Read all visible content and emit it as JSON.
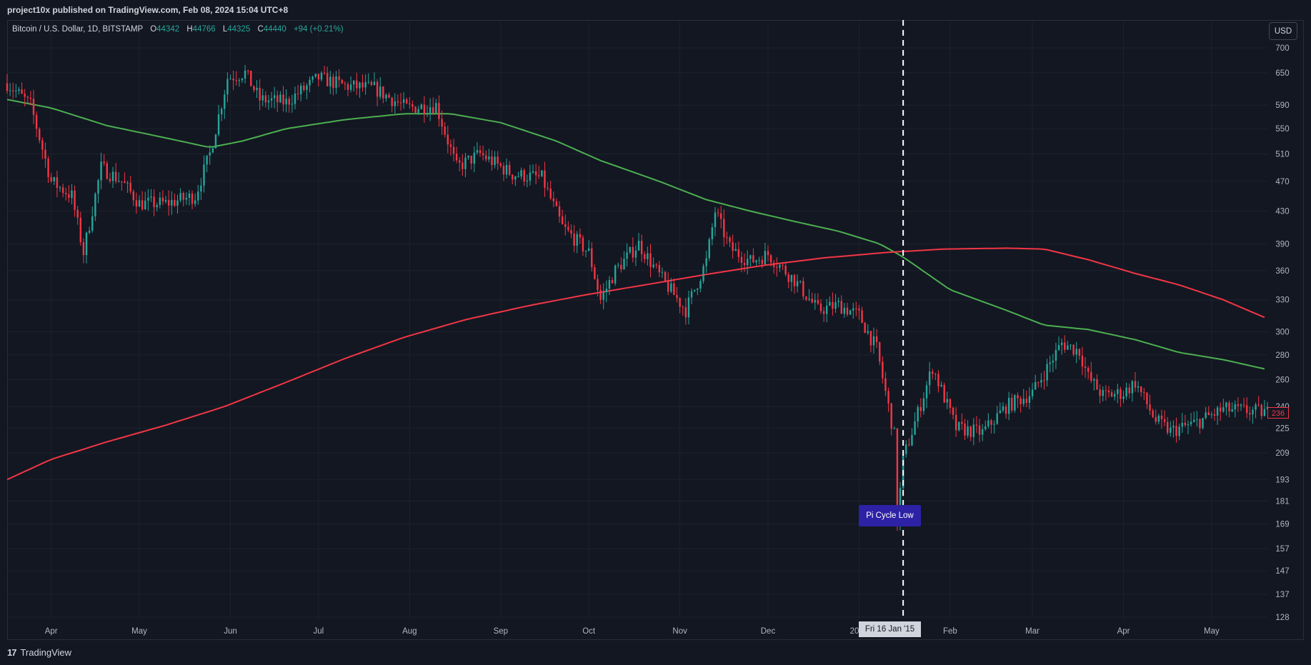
{
  "header": {
    "publish_info": "project10x published on TradingView.com, Feb 08, 2024 15:04 UTC+8"
  },
  "symbol": {
    "name": "Bitcoin / U.S. Dollar, 1D, BITSTAMP",
    "open_label": "O",
    "open_value": "44342",
    "high_label": "H",
    "high_value": "44766",
    "low_label": "L",
    "low_value": "44325",
    "close_label": "C",
    "close_value": "44440",
    "change": "+94 (+0.21%)"
  },
  "currency_button": "USD",
  "annotation": "Pi Cycle Low",
  "crosshair_time_label": "Fri 16 Jan '15",
  "last_price_badge": "236",
  "footer": {
    "brand": "TradingView",
    "logo": "17"
  },
  "colors": {
    "background": "#131722",
    "grid": "#1e222d",
    "up": "#26a69a",
    "down": "#f23645",
    "ma_green": "#4caf50",
    "ma_red": "#f23645",
    "annotation_bg": "#2d22a5"
  },
  "chart_data": {
    "type": "candlestick",
    "scale": "log",
    "ylim": [
      128,
      700
    ],
    "y_ticks": [
      700,
      650,
      590,
      550,
      510,
      470,
      430,
      390,
      360,
      330,
      300,
      280,
      260,
      240,
      225,
      209,
      193,
      181,
      169,
      157,
      147,
      137,
      128
    ],
    "x_ticks": [
      "Apr",
      "May",
      "Jun",
      "Jul",
      "Aug",
      "Sep",
      "Oct",
      "Nov",
      "Dec",
      "2015",
      "Feb",
      "Mar",
      "Apr",
      "May"
    ],
    "x_range": [
      "2014-03-17",
      "2015-05-20"
    ],
    "grid": true,
    "vertical_marker": {
      "date": "2015-01-16",
      "style": "dashed"
    },
    "price_path": [
      [
        "2014-03-17",
        630
      ],
      [
        "2014-03-25",
        590
      ],
      [
        "2014-04-01",
        470
      ],
      [
        "2014-04-08",
        450
      ],
      [
        "2014-04-12",
        380
      ],
      [
        "2014-04-18",
        490
      ],
      [
        "2014-04-25",
        470
      ],
      [
        "2014-05-01",
        440
      ],
      [
        "2014-05-10",
        440
      ],
      [
        "2014-05-20",
        450
      ],
      [
        "2014-05-25",
        510
      ],
      [
        "2014-05-31",
        640
      ],
      [
        "2014-06-06",
        650
      ],
      [
        "2014-06-11",
        600
      ],
      [
        "2014-06-20",
        595
      ],
      [
        "2014-07-01",
        640
      ],
      [
        "2014-07-10",
        625
      ],
      [
        "2014-07-20",
        620
      ],
      [
        "2014-07-31",
        585
      ],
      [
        "2014-08-10",
        590
      ],
      [
        "2014-08-17",
        490
      ],
      [
        "2014-08-25",
        510
      ],
      [
        "2014-09-05",
        480
      ],
      [
        "2014-09-15",
        475
      ],
      [
        "2014-09-22",
        410
      ],
      [
        "2014-10-01",
        380
      ],
      [
        "2014-10-05",
        330
      ],
      [
        "2014-10-10",
        360
      ],
      [
        "2014-10-18",
        390
      ],
      [
        "2014-10-25",
        355
      ],
      [
        "2014-11-03",
        320
      ],
      [
        "2014-11-10",
        370
      ],
      [
        "2014-11-13",
        430
      ],
      [
        "2014-11-18",
        385
      ],
      [
        "2014-11-25",
        370
      ],
      [
        "2014-12-01",
        378
      ],
      [
        "2014-12-10",
        350
      ],
      [
        "2014-12-18",
        320
      ],
      [
        "2014-12-25",
        325
      ],
      [
        "2015-01-01",
        315
      ],
      [
        "2015-01-07",
        285
      ],
      [
        "2015-01-13",
        220
      ],
      [
        "2015-01-14",
        170
      ],
      [
        "2015-01-16",
        205
      ],
      [
        "2015-01-26",
        270
      ],
      [
        "2015-02-03",
        225
      ],
      [
        "2015-02-12",
        222
      ],
      [
        "2015-02-20",
        240
      ],
      [
        "2015-03-01",
        250
      ],
      [
        "2015-03-11",
        290
      ],
      [
        "2015-03-17",
        283
      ],
      [
        "2015-03-20",
        262
      ],
      [
        "2015-03-25",
        248
      ],
      [
        "2015-04-01",
        250
      ],
      [
        "2015-04-05",
        258
      ],
      [
        "2015-04-12",
        230
      ],
      [
        "2015-04-17",
        223
      ],
      [
        "2015-04-25",
        228
      ],
      [
        "2015-05-05",
        238
      ],
      [
        "2015-05-20",
        236
      ]
    ],
    "series": [
      {
        "name": "",
        "color": "#4caf50",
        "points": [
          [
            "2014-03-17",
            600
          ],
          [
            "2014-04-01",
            585
          ],
          [
            "2014-04-20",
            555
          ],
          [
            "2014-05-10",
            535
          ],
          [
            "2014-05-25",
            520
          ],
          [
            "2014-06-05",
            530
          ],
          [
            "2014-06-20",
            550
          ],
          [
            "2014-07-10",
            565
          ],
          [
            "2014-07-30",
            575
          ],
          [
            "2014-08-15",
            575
          ],
          [
            "2014-09-01",
            560
          ],
          [
            "2014-09-20",
            530
          ],
          [
            "2014-10-05",
            500
          ],
          [
            "2014-10-25",
            470
          ],
          [
            "2014-11-10",
            445
          ],
          [
            "2014-11-25",
            430
          ],
          [
            "2014-12-10",
            417
          ],
          [
            "2014-12-25",
            405
          ],
          [
            "2015-01-08",
            390
          ],
          [
            "2015-01-16",
            375
          ],
          [
            "2015-02-01",
            340
          ],
          [
            "2015-02-20",
            320
          ],
          [
            "2015-03-05",
            306
          ],
          [
            "2015-03-20",
            302
          ],
          [
            "2015-04-05",
            293
          ],
          [
            "2015-04-20",
            282
          ],
          [
            "2015-05-05",
            276
          ],
          [
            "2015-05-20",
            268
          ]
        ]
      },
      {
        "name": "",
        "color": "#f23645",
        "points": [
          [
            "2014-03-17",
            193
          ],
          [
            "2014-04-01",
            205
          ],
          [
            "2014-04-20",
            216
          ],
          [
            "2014-05-10",
            227
          ],
          [
            "2014-05-30",
            240
          ],
          [
            "2014-06-20",
            258
          ],
          [
            "2014-07-10",
            277
          ],
          [
            "2014-07-30",
            295
          ],
          [
            "2014-08-20",
            311
          ],
          [
            "2014-09-10",
            324
          ],
          [
            "2014-09-30",
            335
          ],
          [
            "2014-10-20",
            345
          ],
          [
            "2014-11-10",
            356
          ],
          [
            "2014-11-30",
            366
          ],
          [
            "2014-12-20",
            374
          ],
          [
            "2015-01-10",
            380
          ],
          [
            "2015-01-30",
            384
          ],
          [
            "2015-02-20",
            385
          ],
          [
            "2015-03-05",
            384
          ],
          [
            "2015-03-20",
            372
          ],
          [
            "2015-04-05",
            357
          ],
          [
            "2015-04-20",
            345
          ],
          [
            "2015-05-05",
            330
          ],
          [
            "2015-05-20",
            312
          ]
        ]
      }
    ]
  }
}
